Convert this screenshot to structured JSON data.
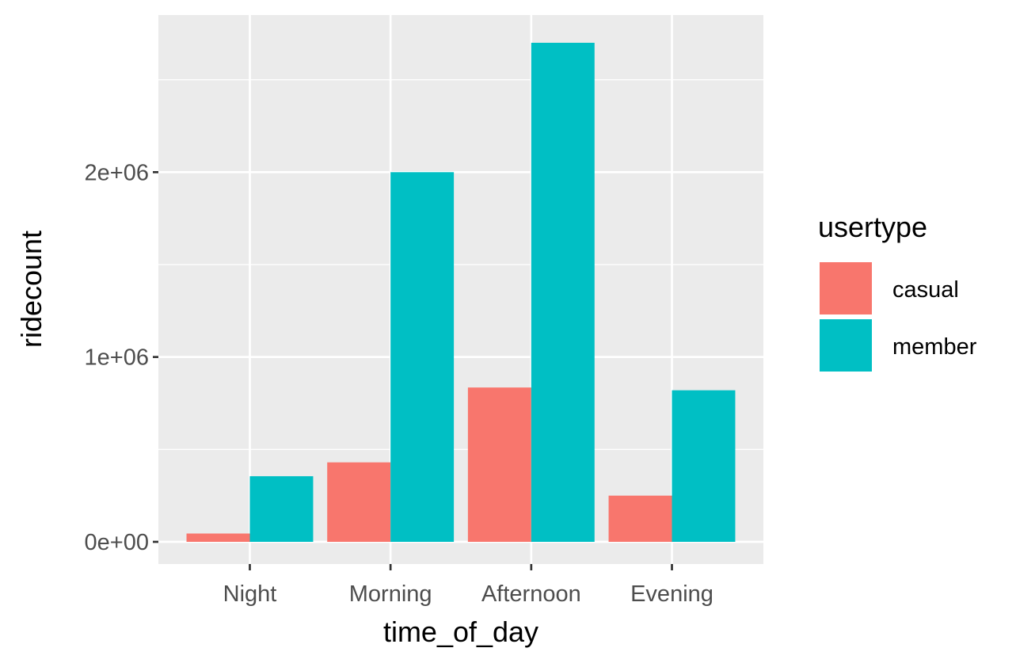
{
  "chart_data": {
    "type": "bar",
    "categories": [
      "Night",
      "Morning",
      "Afternoon",
      "Evening"
    ],
    "series": [
      {
        "name": "casual",
        "values": [
          45000,
          430000,
          835000,
          250000
        ]
      },
      {
        "name": "member",
        "values": [
          355000,
          2000000,
          2700000,
          820000
        ]
      }
    ],
    "xlabel": "time_of_day",
    "ylabel": "ridecount",
    "ylim": [
      -120000,
      2850000
    ],
    "yticks": [
      0,
      1000000,
      2000000
    ],
    "ytick_labels": [
      "0e+00",
      "1e+06",
      "2e+06"
    ],
    "legend": {
      "title": "usertype",
      "placement": "right"
    },
    "colors": {
      "casual": "#F8766D",
      "member": "#00BFC4",
      "panel": "#EBEBEB",
      "grid": "#FFFFFF"
    },
    "grid": true
  }
}
